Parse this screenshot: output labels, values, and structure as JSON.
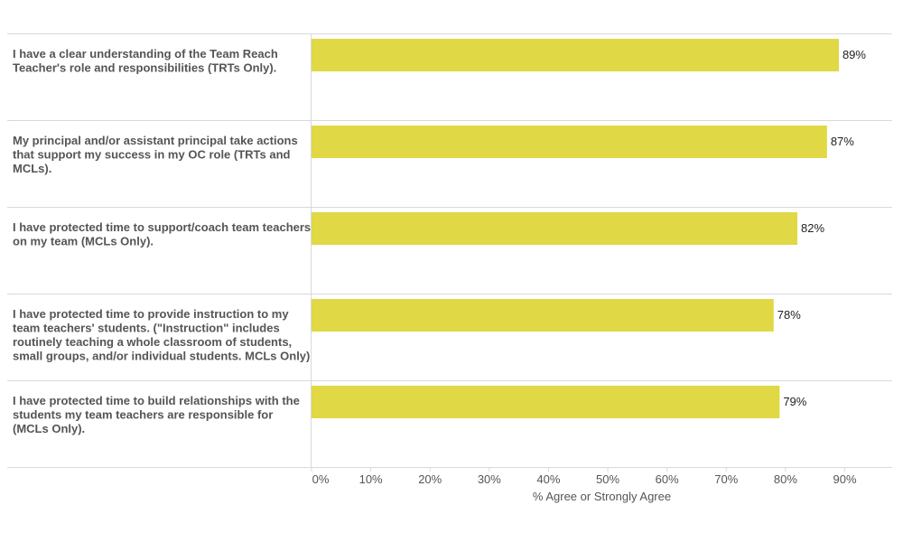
{
  "chart_data": {
    "type": "bar",
    "orientation": "horizontal",
    "categories": [
      [
        "I have a clear understanding of the Team Reach",
        "Teacher's role and responsibilities (TRTs Only)."
      ],
      [
        "My principal and/or assistant principal take actions",
        "that support my success in my OC role (TRTs and",
        "MCLs)."
      ],
      [
        "I have protected time to support/coach team teachers",
        "on my team (MCLs Only)."
      ],
      [
        "I have protected time to provide instruction to my",
        "team teachers' students. (\"Instruction\" includes",
        "routinely teaching a whole classroom of students,",
        "small groups, and/or individual students. MCLs Only)"
      ],
      [
        "I have protected time to build relationships with the",
        "students my team teachers are responsible for",
        "(MCLs Only)."
      ]
    ],
    "values": [
      89,
      87,
      82,
      78,
      79
    ],
    "value_labels": [
      "89%",
      "87%",
      "82%",
      "78%",
      "79%"
    ],
    "xlabel": "% Agree or Strongly Agree",
    "xlim": [
      0,
      98
    ],
    "xticks": [
      0,
      10,
      20,
      30,
      40,
      50,
      60,
      70,
      80,
      90
    ],
    "xtick_labels": [
      "0%",
      "10%",
      "20%",
      "30%",
      "40%",
      "50%",
      "60%",
      "70%",
      "80%",
      "90%"
    ],
    "grid": false,
    "colors": {
      "bar": "#e0d844",
      "border": "#d9d9d9"
    }
  }
}
